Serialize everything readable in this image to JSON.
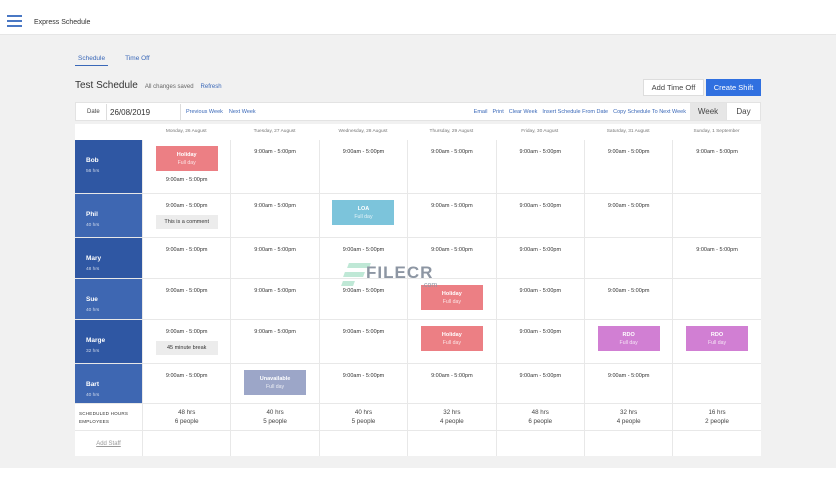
{
  "app": {
    "title": "Express Schedule",
    "menu_icon": "hamburger-icon"
  },
  "tabs": [
    {
      "label": "Schedule",
      "active": true
    },
    {
      "label": "Time Off",
      "active": false
    }
  ],
  "schedule": {
    "title": "Test Schedule",
    "save_status": "All changes saved",
    "refresh_label": "Refresh"
  },
  "buttons": {
    "add_time_off": "Add Time Off",
    "create_shift": "Create Shift"
  },
  "toolbar": {
    "date_label": "Date",
    "date_value": "26/08/2019",
    "previous_week": "Previous Week",
    "next_week": "Next Week",
    "actions": [
      "Email",
      "Print",
      "Clear Week",
      "Insert Schedule From Date",
      "Copy Schedule To Next Week"
    ],
    "view_week": "Week",
    "view_day": "Day",
    "active_view": "Week"
  },
  "days": [
    "Monday, 26 August",
    "Tuesday, 27 August",
    "Wednesday, 28 August",
    "Thursday, 29 August",
    "Friday, 30 August",
    "Saturday, 31 August",
    "Sunday, 1 September"
  ],
  "colors": {
    "employee_dark": "#2f57a3",
    "employee_light": "#3e67b2",
    "primary_button": "#3070e0",
    "holiday": "#ec7f84",
    "loa": "#7cc4db",
    "unavailable": "#9ca6c8",
    "rdo": "#d17fd3",
    "link": "#3a68b8"
  },
  "employees": [
    {
      "name": "Bob",
      "hours": "56 hrs",
      "days": [
        {
          "badge": {
            "type": "holiday",
            "title": "Holiday",
            "sub": "Full day"
          },
          "shift": "9:00am - 5:00pm"
        },
        {
          "shift": "9:00am - 5:00pm"
        },
        {
          "shift": "9:00am - 5:00pm"
        },
        {
          "shift": "9:00am - 5:00pm"
        },
        {
          "shift": "9:00am - 5:00pm"
        },
        {
          "shift": "9:00am - 5:00pm"
        },
        {
          "shift": "9:00am - 5:00pm"
        }
      ]
    },
    {
      "name": "Phil",
      "hours": "40 hrs",
      "days": [
        {
          "shift": "9:00am - 5:00pm",
          "comment": "This is a comment"
        },
        {
          "shift": "9:00am - 5:00pm"
        },
        {
          "badge": {
            "type": "loa",
            "title": "LOA",
            "sub": "Full day"
          }
        },
        {
          "shift": "9:00am - 5:00pm"
        },
        {
          "shift": "9:00am - 5:00pm"
        },
        {
          "shift": "9:00am - 5:00pm"
        },
        {}
      ]
    },
    {
      "name": "Mary",
      "hours": "48 hrs",
      "days": [
        {
          "shift": "9:00am - 5:00pm"
        },
        {
          "shift": "9:00am - 5:00pm"
        },
        {
          "shift": "9:00am - 5:00pm"
        },
        {
          "shift": "9:00am - 5:00pm"
        },
        {
          "shift": "9:00am - 5:00pm"
        },
        {},
        {
          "shift": "9:00am - 5:00pm"
        }
      ]
    },
    {
      "name": "Sue",
      "hours": "40 hrs",
      "days": [
        {
          "shift": "9:00am - 5:00pm"
        },
        {
          "shift": "9:00am - 5:00pm"
        },
        {
          "shift": "9:00am - 5:00pm"
        },
        {
          "badge": {
            "type": "holiday",
            "title": "Holiday",
            "sub": "Full day"
          }
        },
        {
          "shift": "9:00am - 5:00pm"
        },
        {
          "shift": "9:00am - 5:00pm"
        },
        {}
      ]
    },
    {
      "name": "Marge",
      "hours": "32 hrs",
      "days": [
        {
          "shift": "9:00am - 5:00pm",
          "comment": "45 minute break"
        },
        {
          "shift": "9:00am - 5:00pm"
        },
        {
          "shift": "9:00am - 5:00pm"
        },
        {
          "badge": {
            "type": "holiday",
            "title": "Holiday",
            "sub": "Full day"
          }
        },
        {
          "shift": "9:00am - 5:00pm"
        },
        {
          "badge": {
            "type": "rdo",
            "title": "RDO",
            "sub": "Full day"
          }
        },
        {
          "badge": {
            "type": "rdo",
            "title": "RDO",
            "sub": "Full day"
          }
        }
      ]
    },
    {
      "name": "Bart",
      "hours": "40 hrs",
      "days": [
        {
          "shift": "9:00am - 5:00pm"
        },
        {
          "badge": {
            "type": "unavail",
            "title": "Unavailable",
            "sub": "Full day"
          }
        },
        {
          "shift": "9:00am - 5:00pm"
        },
        {
          "shift": "9:00am - 5:00pm"
        },
        {
          "shift": "9:00am - 5:00pm"
        },
        {
          "shift": "9:00am - 5:00pm"
        },
        {}
      ]
    }
  ],
  "summary": {
    "label_hours": "SCHEDULED HOURS",
    "label_employees": "EMPLOYEES",
    "days": [
      {
        "hours": "48 hrs",
        "people": "6 people"
      },
      {
        "hours": "40 hrs",
        "people": "5 people"
      },
      {
        "hours": "40 hrs",
        "people": "5 people"
      },
      {
        "hours": "32 hrs",
        "people": "4 people"
      },
      {
        "hours": "48 hrs",
        "people": "6 people"
      },
      {
        "hours": "32 hrs",
        "people": "4 people"
      },
      {
        "hours": "16 hrs",
        "people": "2 people"
      }
    ]
  },
  "add_staff_label": "Add Staff",
  "watermark": {
    "text": "FILECR",
    "sub": ".com"
  }
}
